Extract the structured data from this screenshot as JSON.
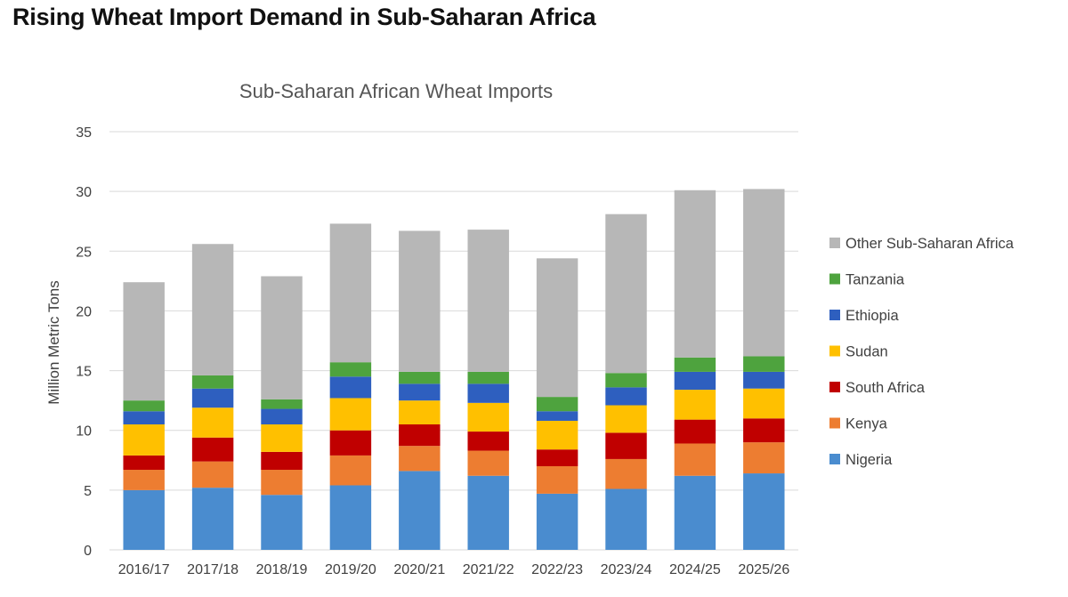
{
  "page": {
    "heading": "Rising Wheat Import Demand in Sub-Saharan Africa"
  },
  "chart_data": {
    "type": "bar",
    "stacked": true,
    "title": "Sub-Saharan African Wheat Imports",
    "xlabel": "",
    "ylabel": "Million Metric Tons",
    "ylim": [
      0,
      35
    ],
    "yticks": [
      0,
      5,
      10,
      15,
      20,
      25,
      30,
      35
    ],
    "grid": true,
    "legend_position": "right",
    "categories": [
      "2016/17",
      "2017/18",
      "2018/19",
      "2019/20",
      "2020/21",
      "2021/22",
      "2022/23",
      "2023/24",
      "2024/25",
      "2025/26"
    ],
    "series": [
      {
        "name": "Nigeria",
        "color": "#4a8ccf",
        "values": [
          5.0,
          5.2,
          4.6,
          5.4,
          6.6,
          6.2,
          4.7,
          5.1,
          6.2,
          6.4
        ]
      },
      {
        "name": "Kenya",
        "color": "#ed7d31",
        "values": [
          1.7,
          2.2,
          2.1,
          2.5,
          2.1,
          2.1,
          2.3,
          2.5,
          2.7,
          2.6
        ]
      },
      {
        "name": "South Africa",
        "color": "#c00000",
        "values": [
          1.2,
          2.0,
          1.5,
          2.1,
          1.8,
          1.6,
          1.4,
          2.2,
          2.0,
          2.0
        ]
      },
      {
        "name": "Sudan",
        "color": "#ffc000",
        "values": [
          2.6,
          2.5,
          2.3,
          2.7,
          2.0,
          2.4,
          2.4,
          2.3,
          2.5,
          2.5
        ]
      },
      {
        "name": "Ethiopia",
        "color": "#2e5fbf",
        "values": [
          1.1,
          1.6,
          1.3,
          1.8,
          1.4,
          1.6,
          0.8,
          1.5,
          1.5,
          1.4
        ]
      },
      {
        "name": "Tanzania",
        "color": "#4ea33e",
        "values": [
          0.9,
          1.1,
          0.8,
          1.2,
          1.0,
          1.0,
          1.2,
          1.2,
          1.2,
          1.3
        ]
      },
      {
        "name": "Other Sub-Saharan Africa",
        "color": "#b7b7b7",
        "values": [
          9.9,
          11.0,
          10.3,
          11.6,
          11.8,
          11.9,
          11.6,
          13.3,
          14.0,
          14.0
        ]
      }
    ]
  }
}
